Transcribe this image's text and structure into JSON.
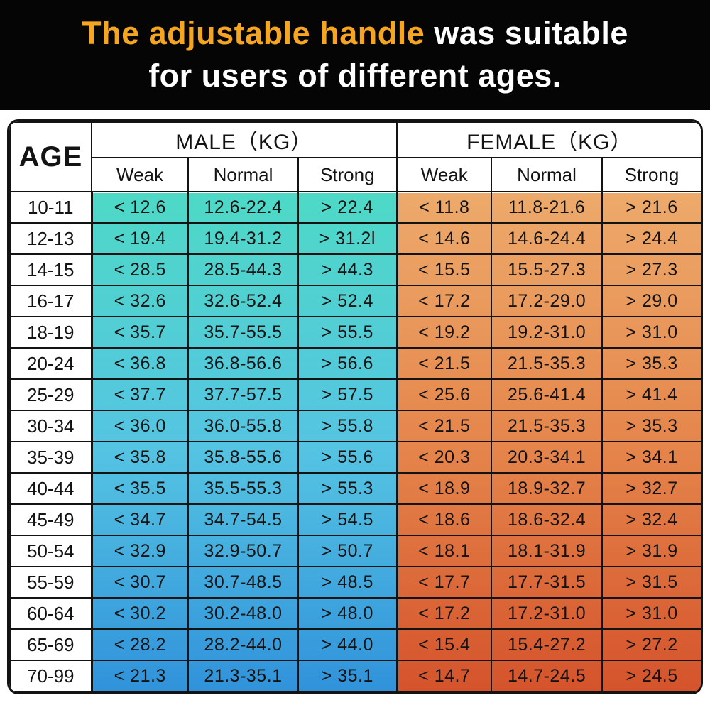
{
  "header": {
    "title_highlight": "The adjustable handle",
    "title_line1_rest": " was suitable",
    "title_line2": "for users of different ages."
  },
  "table": {
    "age_header": "AGE",
    "male_group_label": "MALE（KG）",
    "female_group_label": "FEMALE（KG）",
    "sub_headers": [
      "Weak",
      "Normal",
      "Strong"
    ],
    "rows": [
      {
        "age": "10-11",
        "male": [
          "< 12.6",
          "12.6-22.4",
          "> 22.4"
        ],
        "female": [
          "< 11.8",
          "11.8-21.6",
          "> 21.6"
        ]
      },
      {
        "age": "12-13",
        "male": [
          "< 19.4",
          "19.4-31.2",
          "> 31.2l"
        ],
        "female": [
          "< 14.6",
          "14.6-24.4",
          "> 24.4"
        ]
      },
      {
        "age": "14-15",
        "male": [
          "< 28.5",
          "28.5-44.3",
          "> 44.3"
        ],
        "female": [
          "< 15.5",
          "15.5-27.3",
          "> 27.3"
        ]
      },
      {
        "age": "16-17",
        "male": [
          "< 32.6",
          "32.6-52.4",
          "> 52.4"
        ],
        "female": [
          "< 17.2",
          "17.2-29.0",
          "> 29.0"
        ]
      },
      {
        "age": "18-19",
        "male": [
          "< 35.7",
          "35.7-55.5",
          "> 55.5"
        ],
        "female": [
          "< 19.2",
          "19.2-31.0",
          "> 31.0"
        ]
      },
      {
        "age": "20-24",
        "male": [
          "< 36.8",
          "36.8-56.6",
          "> 56.6"
        ],
        "female": [
          "< 21.5",
          "21.5-35.3",
          "> 35.3"
        ]
      },
      {
        "age": "25-29",
        "male": [
          "< 37.7",
          "37.7-57.5",
          "> 57.5"
        ],
        "female": [
          "< 25.6",
          "25.6-41.4",
          "> 41.4"
        ]
      },
      {
        "age": "30-34",
        "male": [
          "< 36.0",
          "36.0-55.8",
          "> 55.8"
        ],
        "female": [
          "< 21.5",
          "21.5-35.3",
          "> 35.3"
        ]
      },
      {
        "age": "35-39",
        "male": [
          "< 35.8",
          "35.8-55.6",
          "> 55.6"
        ],
        "female": [
          "< 20.3",
          "20.3-34.1",
          "> 34.1"
        ]
      },
      {
        "age": "40-44",
        "male": [
          "< 35.5",
          "35.5-55.3",
          "> 55.3"
        ],
        "female": [
          "< 18.9",
          "18.9-32.7",
          "> 32.7"
        ]
      },
      {
        "age": "45-49",
        "male": [
          "< 34.7",
          "34.7-54.5",
          "> 54.5"
        ],
        "female": [
          "< 18.6",
          "18.6-32.4",
          "> 32.4"
        ]
      },
      {
        "age": "50-54",
        "male": [
          "< 32.9",
          "32.9-50.7",
          "> 50.7"
        ],
        "female": [
          "< 18.1",
          "18.1-31.9",
          "> 31.9"
        ]
      },
      {
        "age": "55-59",
        "male": [
          "< 30.7",
          "30.7-48.5",
          "> 48.5"
        ],
        "female": [
          "< 17.7",
          "17.7-31.5",
          "> 31.5"
        ]
      },
      {
        "age": "60-64",
        "male": [
          "< 30.2",
          "30.2-48.0",
          "> 48.0"
        ],
        "female": [
          "< 17.2",
          "17.2-31.0",
          "> 31.0"
        ]
      },
      {
        "age": "65-69",
        "male": [
          "< 28.2",
          "28.2-44.0",
          "> 44.0"
        ],
        "female": [
          "< 15.4",
          "15.4-27.2",
          "> 27.2"
        ]
      },
      {
        "age": "70-99",
        "male": [
          "< 21.3",
          "21.3-35.1",
          "> 35.1"
        ],
        "female": [
          "< 14.7",
          "14.7-24.5",
          "> 24.5"
        ]
      }
    ]
  },
  "colors": {
    "header_bg": "#050505",
    "title_highlight": "#F5A51F",
    "male_gradient_top": "#4ED9C6",
    "male_gradient_mid": "#55C4E2",
    "male_gradient_bottom": "#2F90DA",
    "female_gradient_top": "#EDAA6B",
    "female_gradient_mid": "#E5854B",
    "female_gradient_bottom": "#D4512A"
  }
}
